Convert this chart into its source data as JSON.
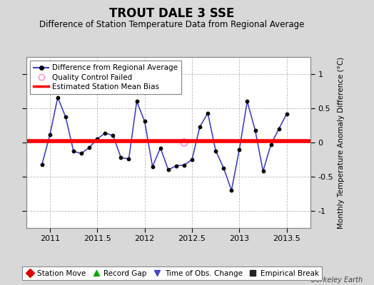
{
  "title": "TROUT DALE 3 SSE",
  "subtitle": "Difference of Station Temperature Data from Regional Average",
  "ylabel": "Monthly Temperature Anomaly Difference (°C)",
  "xlabel": "",
  "xlim": [
    2010.75,
    2013.75
  ],
  "ylim": [
    -1.25,
    1.25
  ],
  "yticks": [
    -1,
    -0.5,
    0,
    0.5,
    1
  ],
  "xticks": [
    2011,
    2011.5,
    2012,
    2012.5,
    2013,
    2013.5
  ],
  "background_color": "#d8d8d8",
  "plot_bg_color": "#ffffff",
  "grid_color": "#bbbbbb",
  "line_color": "#4444cc",
  "marker_color": "#000000",
  "bias_color": "#ff0000",
  "bias_value": 0.02,
  "watermark": "Berkeley Earth",
  "x_data": [
    2010.917,
    2011.0,
    2011.083,
    2011.167,
    2011.25,
    2011.333,
    2011.417,
    2011.5,
    2011.583,
    2011.667,
    2011.75,
    2011.833,
    2011.917,
    2012.0,
    2012.083,
    2012.167,
    2012.25,
    2012.333,
    2012.417,
    2012.5,
    2012.583,
    2012.667,
    2012.75,
    2012.833,
    2012.917,
    2013.0,
    2013.083,
    2013.167,
    2013.25,
    2013.333,
    2013.417,
    2013.5
  ],
  "y_data": [
    -0.32,
    0.11,
    0.66,
    0.37,
    -0.13,
    -0.16,
    -0.07,
    0.05,
    0.14,
    0.1,
    -0.22,
    -0.24,
    0.6,
    0.31,
    -0.35,
    -0.08,
    -0.4,
    -0.34,
    -0.33,
    -0.25,
    0.23,
    0.43,
    -0.12,
    -0.37,
    -0.7,
    -0.1,
    0.6,
    0.18,
    -0.42,
    -0.03,
    0.2,
    0.42
  ],
  "qc_failed_x": [
    2012.417
  ],
  "qc_failed_y": [
    0.0
  ],
  "legend1_entries": [
    {
      "label": "Difference from Regional Average"
    },
    {
      "label": "Quality Control Failed"
    },
    {
      "label": "Estimated Station Mean Bias"
    }
  ],
  "legend2_entries": [
    {
      "label": "Station Move",
      "marker": "D",
      "color": "#dd0000"
    },
    {
      "label": "Record Gap",
      "marker": "^",
      "color": "#00aa00"
    },
    {
      "label": "Time of Obs. Change",
      "marker": "v",
      "color": "#4444cc"
    },
    {
      "label": "Empirical Break",
      "marker": "s",
      "color": "#222222"
    }
  ],
  "title_fontsize": 12,
  "subtitle_fontsize": 8.5,
  "axis_fontsize": 7.5,
  "tick_fontsize": 8
}
